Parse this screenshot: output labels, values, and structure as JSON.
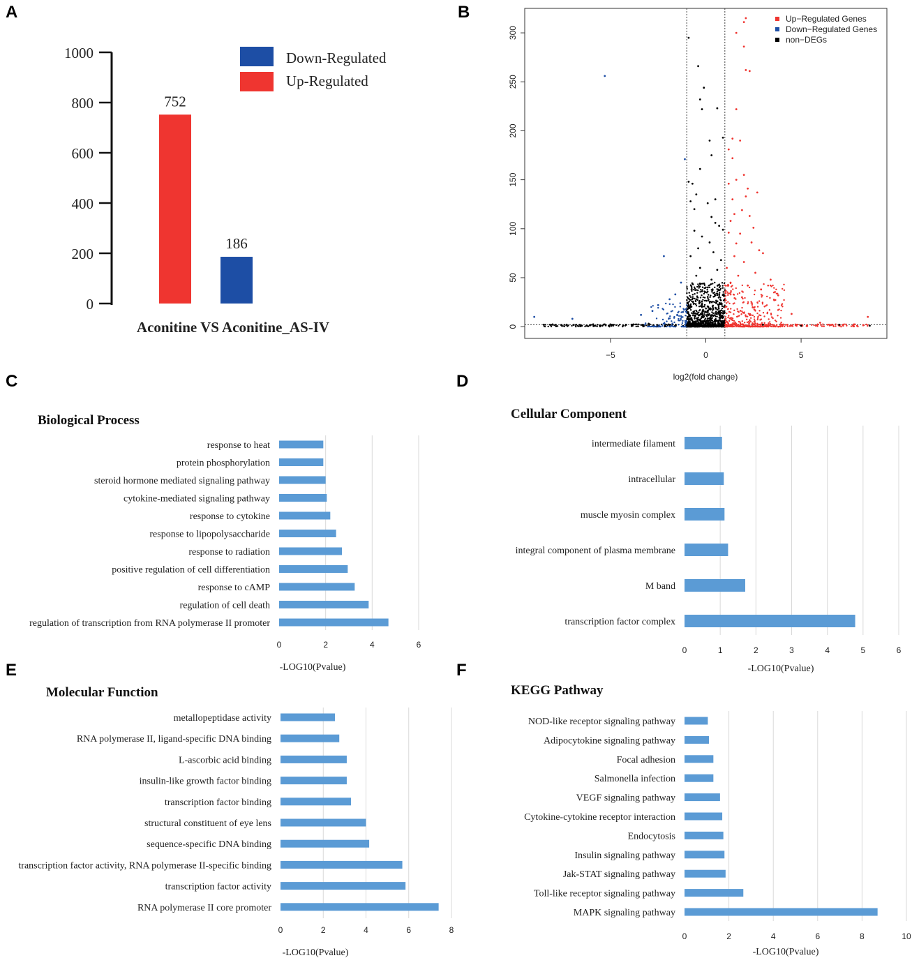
{
  "panel_letters": [
    "A",
    "B",
    "C",
    "D",
    "E",
    "F"
  ],
  "colors": {
    "up": "#ef3530",
    "down": "#1d4ea5",
    "nondeg": "#000000",
    "go_bar": "#5b9bd5",
    "grid": "#d9d9d9"
  },
  "chart_data": [
    {
      "panel": "A",
      "type": "bar",
      "categories": [
        "Up-Regulated",
        "Down-Regulated"
      ],
      "values": [
        752,
        186
      ],
      "value_labels": [
        "752",
        "186"
      ],
      "title": "",
      "xlabel": "Aconitine VS Aconitine_AS-IV",
      "ylabel": "",
      "ylim": [
        0,
        1000
      ],
      "yticks": [
        0,
        200,
        400,
        600,
        800,
        1000
      ],
      "ytick_labels": [
        "0",
        "200",
        "400",
        "600",
        "800",
        "1000"
      ],
      "legend": [
        {
          "label": "Down-Regulated",
          "color": "#1d4ea5"
        },
        {
          "label": "Up-Regulated",
          "color": "#ef3530"
        }
      ],
      "legend_position": "top-right"
    },
    {
      "panel": "B",
      "type": "scatter",
      "title": "",
      "xlabel": "log2(fold change)",
      "ylabel": "",
      "xlim": [
        -9.5,
        9.5
      ],
      "ylim": [
        -12,
        325
      ],
      "xticks": [
        -5,
        0,
        5
      ],
      "xtick_labels": [
        "−5",
        "0",
        "5"
      ],
      "yticks": [
        0,
        50,
        100,
        150,
        200,
        250,
        300
      ],
      "ytick_labels": [
        "0",
        "50",
        "100",
        "150",
        "200",
        "250",
        "300"
      ],
      "threshold_lines": {
        "x": [
          -1,
          1
        ],
        "y": 2
      },
      "legend": [
        {
          "label": "Up−Regulated Genes",
          "color": "#ef3530"
        },
        {
          "label": "Down−Regulated Genes",
          "color": "#1d4ea5"
        },
        {
          "label": "non−DEGs",
          "color": "#000000"
        }
      ],
      "legend_position": "top-right",
      "series": [
        {
          "name": "Up−Regulated Genes",
          "points": [
            [
              2.1,
              315
            ],
            [
              2.0,
              311
            ],
            [
              1.6,
              300
            ],
            [
              2.0,
              286
            ],
            [
              2.1,
              262
            ],
            [
              2.3,
              261
            ],
            [
              1.6,
              222
            ],
            [
              1.4,
              192
            ],
            [
              1.8,
              190
            ],
            [
              1.2,
              181
            ],
            [
              1.4,
              172
            ],
            [
              2.0,
              155
            ],
            [
              1.6,
              150
            ],
            [
              1.2,
              146
            ],
            [
              2.2,
              141
            ],
            [
              2.7,
              137
            ],
            [
              2.1,
              133
            ],
            [
              1.4,
              130
            ],
            [
              1.9,
              119
            ],
            [
              1.5,
              115
            ],
            [
              2.3,
              113
            ],
            [
              1.3,
              108
            ],
            [
              2.5,
              101
            ],
            [
              1.2,
              96
            ],
            [
              1.8,
              95
            ],
            [
              2.4,
              86
            ],
            [
              1.6,
              85
            ],
            [
              2.8,
              78
            ],
            [
              3.0,
              75
            ],
            [
              1.5,
              72
            ],
            [
              2.0,
              66
            ],
            [
              1.1,
              60
            ],
            [
              2.6,
              55
            ],
            [
              1.7,
              52
            ],
            [
              3.4,
              48
            ],
            [
              1.3,
              45
            ],
            [
              2.2,
              42
            ],
            [
              2.9,
              38
            ],
            [
              3.8,
              32
            ],
            [
              1.9,
              30
            ],
            [
              4.5,
              13
            ],
            [
              6.0,
              4
            ],
            [
              8.5,
              10
            ],
            [
              7.2,
              2
            ]
          ]
        },
        {
          "name": "Down−Regulated Genes",
          "points": [
            [
              -5.3,
              256
            ],
            [
              -1.1,
              171
            ],
            [
              -2.2,
              72
            ],
            [
              -1.3,
              45
            ],
            [
              -1.6,
              33
            ],
            [
              -1.9,
              28
            ],
            [
              -2.5,
              22
            ],
            [
              -2.8,
              16
            ],
            [
              -3.4,
              12
            ],
            [
              -9.0,
              10
            ],
            [
              -7.0,
              8
            ],
            [
              -1.2,
              15
            ],
            [
              -1.5,
              12
            ]
          ]
        },
        {
          "name": "non−DEGs",
          "points": [
            [
              -0.9,
              295
            ],
            [
              -0.4,
              266
            ],
            [
              -0.1,
              244
            ],
            [
              -0.3,
              232
            ],
            [
              -0.2,
              222
            ],
            [
              0.6,
              223
            ],
            [
              0.9,
              193
            ],
            [
              0.2,
              190
            ],
            [
              0.3,
              175
            ],
            [
              -0.3,
              161
            ],
            [
              -0.9,
              148
            ],
            [
              -0.7,
              146
            ],
            [
              -0.5,
              135
            ],
            [
              0.5,
              130
            ],
            [
              -0.8,
              128
            ],
            [
              -0.6,
              120
            ],
            [
              0.1,
              126
            ],
            [
              0.3,
              112
            ],
            [
              0.5,
              106
            ],
            [
              0.7,
              103
            ],
            [
              -0.6,
              98
            ],
            [
              0.9,
              99
            ],
            [
              -0.2,
              92
            ],
            [
              0.2,
              86
            ],
            [
              -0.4,
              80
            ],
            [
              0.4,
              76
            ],
            [
              -0.8,
              72
            ],
            [
              0.8,
              68
            ],
            [
              -0.3,
              60
            ],
            [
              0.6,
              58
            ],
            [
              -0.5,
              52
            ],
            [
              0.3,
              48
            ],
            [
              -0.7,
              44
            ],
            [
              0.1,
              40
            ],
            [
              -0.2,
              36
            ],
            [
              0.5,
              32
            ],
            [
              -0.5,
              28
            ],
            [
              0.8,
              24
            ],
            [
              -0.8,
              20
            ],
            [
              0.2,
              18
            ],
            [
              -3.0,
              3
            ],
            [
              -5.0,
              2
            ],
            [
              -6.5,
              1
            ],
            [
              -8.5,
              2
            ],
            [
              3.0,
              2
            ],
            [
              5.0,
              1
            ],
            [
              7.0,
              2
            ],
            [
              8.6,
              1
            ]
          ]
        }
      ]
    },
    {
      "panel": "C",
      "type": "bar",
      "orientation": "horizontal",
      "title": "Biological Process",
      "xlabel": "-LOG10(Pvalue)",
      "xlim": [
        0,
        6
      ],
      "xticks": [
        0,
        2,
        4,
        6
      ],
      "xtick_labels": [
        "0",
        "2",
        "4",
        "6"
      ],
      "categories": [
        "response to heat",
        "protein phosphorylation",
        "steroid hormone mediated signaling pathway",
        "cytokine-mediated signaling pathway",
        "response to cytokine",
        "response to lipopolysaccharide",
        "response to radiation",
        "positive regulation of cell differentiation",
        "response to cAMP",
        "regulation of cell death",
        "regulation of transcription from RNA polymerase II promoter"
      ],
      "values": [
        1.9,
        1.9,
        2.0,
        2.05,
        2.2,
        2.45,
        2.7,
        2.95,
        3.25,
        3.85,
        4.7
      ]
    },
    {
      "panel": "D",
      "type": "bar",
      "orientation": "horizontal",
      "title": "Cellular Component",
      "xlabel": "-LOG10(Pvalue)",
      "xlim": [
        0,
        6
      ],
      "xticks": [
        0,
        1,
        2,
        3,
        4,
        5,
        6
      ],
      "xtick_labels": [
        "0",
        "1",
        "2",
        "3",
        "4",
        "5",
        "6"
      ],
      "categories": [
        "intermediate filament",
        "intracellular",
        "muscle myosin complex",
        "integral component of plasma membrane",
        "M band",
        "transcription factor complex"
      ],
      "values": [
        1.05,
        1.1,
        1.12,
        1.22,
        1.7,
        4.78
      ]
    },
    {
      "panel": "E",
      "type": "bar",
      "orientation": "horizontal",
      "title": "Molecular Function",
      "xlabel": "-LOG10(Pvalue)",
      "xlim": [
        0,
        8
      ],
      "xticks": [
        0,
        2,
        4,
        6,
        8
      ],
      "xtick_labels": [
        "0",
        "2",
        "4",
        "6",
        "8"
      ],
      "categories": [
        "metallopeptidase activity",
        "RNA polymerase II, ligand-specific DNA binding",
        "L-ascorbic acid binding",
        "insulin-like growth factor binding",
        "transcription factor binding",
        "structural constituent of eye lens",
        "sequence-specific DNA binding",
        "transcription factor activity, RNA polymerase II-specific binding",
        "transcription factor activity",
        "RNA polymerase II core promoter"
      ],
      "values": [
        2.55,
        2.75,
        3.1,
        3.1,
        3.3,
        4.0,
        4.15,
        5.7,
        5.85,
        7.4
      ]
    },
    {
      "panel": "F",
      "type": "bar",
      "orientation": "horizontal",
      "title": "KEGG Pathway",
      "xlabel": "-LOG10(Pvalue)",
      "xlim": [
        0,
        10
      ],
      "xticks": [
        0,
        2,
        4,
        6,
        8,
        10
      ],
      "xtick_labels": [
        "0",
        "2",
        "4",
        "6",
        "8",
        "10"
      ],
      "categories": [
        "NOD-like receptor signaling pathway",
        "Adipocytokine signaling pathway",
        "Focal adhesion",
        "Salmonella infection",
        "VEGF signaling pathway",
        "Cytokine-cytokine receptor interaction",
        "Endocytosis",
        "Insulin signaling pathway",
        "Jak-STAT signaling pathway",
        "Toll-like receptor signaling pathway",
        "MAPK signaling pathway"
      ],
      "values": [
        1.05,
        1.1,
        1.3,
        1.3,
        1.6,
        1.7,
        1.75,
        1.8,
        1.85,
        2.65,
        8.7
      ]
    }
  ]
}
